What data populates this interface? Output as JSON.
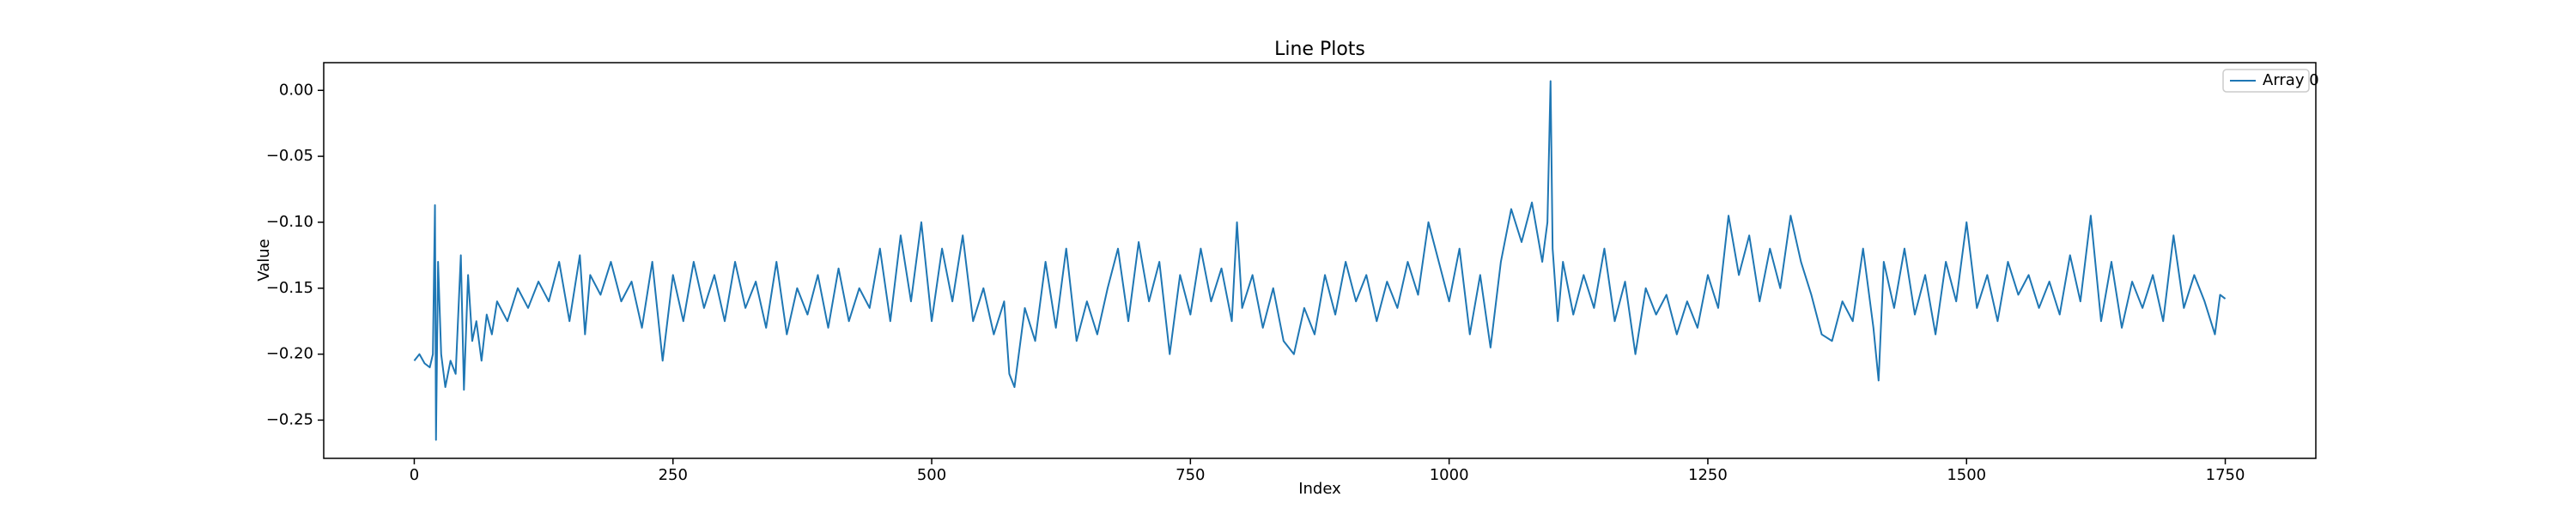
{
  "chart_data": {
    "type": "line",
    "title": "Line Plots",
    "x_label": "Index",
    "y_label": "Value",
    "x": [
      0,
      5,
      10,
      15,
      18,
      20,
      21,
      23,
      26,
      30,
      35,
      40,
      45,
      48,
      52,
      56,
      60,
      65,
      70,
      75,
      80,
      90,
      100,
      110,
      120,
      130,
      140,
      150,
      160,
      165,
      170,
      180,
      190,
      200,
      210,
      220,
      230,
      240,
      250,
      260,
      270,
      280,
      290,
      300,
      310,
      320,
      330,
      340,
      350,
      360,
      370,
      380,
      390,
      400,
      410,
      420,
      430,
      440,
      450,
      460,
      470,
      480,
      490,
      500,
      510,
      520,
      530,
      540,
      550,
      560,
      570,
      575,
      580,
      590,
      600,
      610,
      620,
      630,
      640,
      650,
      660,
      670,
      680,
      690,
      700,
      710,
      720,
      730,
      740,
      750,
      760,
      770,
      780,
      790,
      795,
      800,
      810,
      820,
      830,
      840,
      850,
      860,
      870,
      880,
      890,
      900,
      910,
      920,
      930,
      940,
      950,
      960,
      970,
      980,
      990,
      1000,
      1010,
      1020,
      1030,
      1040,
      1050,
      1060,
      1070,
      1080,
      1090,
      1095,
      1098,
      1100,
      1105,
      1110,
      1120,
      1130,
      1140,
      1150,
      1160,
      1170,
      1180,
      1190,
      1200,
      1210,
      1220,
      1230,
      1240,
      1250,
      1260,
      1270,
      1280,
      1290,
      1300,
      1310,
      1320,
      1330,
      1340,
      1350,
      1360,
      1370,
      1380,
      1390,
      1400,
      1410,
      1415,
      1420,
      1430,
      1440,
      1450,
      1460,
      1470,
      1480,
      1490,
      1500,
      1510,
      1520,
      1530,
      1540,
      1550,
      1560,
      1570,
      1580,
      1590,
      1600,
      1610,
      1620,
      1630,
      1640,
      1650,
      1660,
      1670,
      1680,
      1690,
      1700,
      1710,
      1720,
      1730,
      1740,
      1745,
      1750
    ],
    "series": [
      {
        "name": "Array 0",
        "color": "#1f77b4",
        "values": [
          -0.205,
          -0.2,
          -0.207,
          -0.21,
          -0.2,
          -0.087,
          -0.265,
          -0.13,
          -0.2,
          -0.225,
          -0.205,
          -0.215,
          -0.125,
          -0.227,
          -0.14,
          -0.19,
          -0.175,
          -0.205,
          -0.17,
          -0.185,
          -0.16,
          -0.175,
          -0.15,
          -0.165,
          -0.145,
          -0.16,
          -0.13,
          -0.175,
          -0.125,
          -0.185,
          -0.14,
          -0.155,
          -0.13,
          -0.16,
          -0.145,
          -0.18,
          -0.13,
          -0.205,
          -0.14,
          -0.175,
          -0.13,
          -0.165,
          -0.14,
          -0.175,
          -0.13,
          -0.165,
          -0.145,
          -0.18,
          -0.13,
          -0.185,
          -0.15,
          -0.17,
          -0.14,
          -0.18,
          -0.135,
          -0.175,
          -0.15,
          -0.165,
          -0.12,
          -0.175,
          -0.11,
          -0.16,
          -0.1,
          -0.175,
          -0.12,
          -0.16,
          -0.11,
          -0.175,
          -0.15,
          -0.185,
          -0.16,
          -0.215,
          -0.225,
          -0.165,
          -0.19,
          -0.13,
          -0.18,
          -0.12,
          -0.19,
          -0.16,
          -0.185,
          -0.15,
          -0.12,
          -0.175,
          -0.115,
          -0.16,
          -0.13,
          -0.2,
          -0.14,
          -0.17,
          -0.12,
          -0.16,
          -0.135,
          -0.175,
          -0.1,
          -0.165,
          -0.14,
          -0.18,
          -0.15,
          -0.19,
          -0.2,
          -0.165,
          -0.185,
          -0.14,
          -0.17,
          -0.13,
          -0.16,
          -0.14,
          -0.175,
          -0.145,
          -0.165,
          -0.13,
          -0.155,
          -0.1,
          -0.13,
          -0.16,
          -0.12,
          -0.185,
          -0.14,
          -0.195,
          -0.13,
          -0.09,
          -0.115,
          -0.085,
          -0.13,
          -0.1,
          0.007,
          -0.12,
          -0.175,
          -0.13,
          -0.17,
          -0.14,
          -0.165,
          -0.12,
          -0.175,
          -0.145,
          -0.2,
          -0.15,
          -0.17,
          -0.155,
          -0.185,
          -0.16,
          -0.18,
          -0.14,
          -0.165,
          -0.095,
          -0.14,
          -0.11,
          -0.16,
          -0.12,
          -0.15,
          -0.095,
          -0.13,
          -0.155,
          -0.185,
          -0.19,
          -0.16,
          -0.175,
          -0.12,
          -0.18,
          -0.22,
          -0.13,
          -0.165,
          -0.12,
          -0.17,
          -0.14,
          -0.185,
          -0.13,
          -0.16,
          -0.1,
          -0.165,
          -0.14,
          -0.175,
          -0.13,
          -0.155,
          -0.14,
          -0.165,
          -0.145,
          -0.17,
          -0.125,
          -0.16,
          -0.095,
          -0.175,
          -0.13,
          -0.18,
          -0.145,
          -0.165,
          -0.14,
          -0.175,
          -0.11,
          -0.165,
          -0.14,
          -0.16,
          -0.185,
          -0.155,
          -0.158
        ]
      }
    ],
    "xlim": [
      -87.5,
      1837.5
    ],
    "ylim": [
      -0.279,
      0.021
    ],
    "xticks": [
      0,
      250,
      500,
      750,
      1000,
      1250,
      1500,
      1750
    ],
    "yticks": [
      {
        "value": 0,
        "label": "0.00"
      },
      {
        "value": -0.05,
        "label": "−0.05"
      },
      {
        "value": -0.1,
        "label": "−0.10"
      },
      {
        "value": -0.15,
        "label": "−0.15"
      },
      {
        "value": -0.2,
        "label": "−0.20"
      },
      {
        "value": -0.25,
        "label": "−0.25"
      }
    ],
    "legend": "upper right"
  }
}
